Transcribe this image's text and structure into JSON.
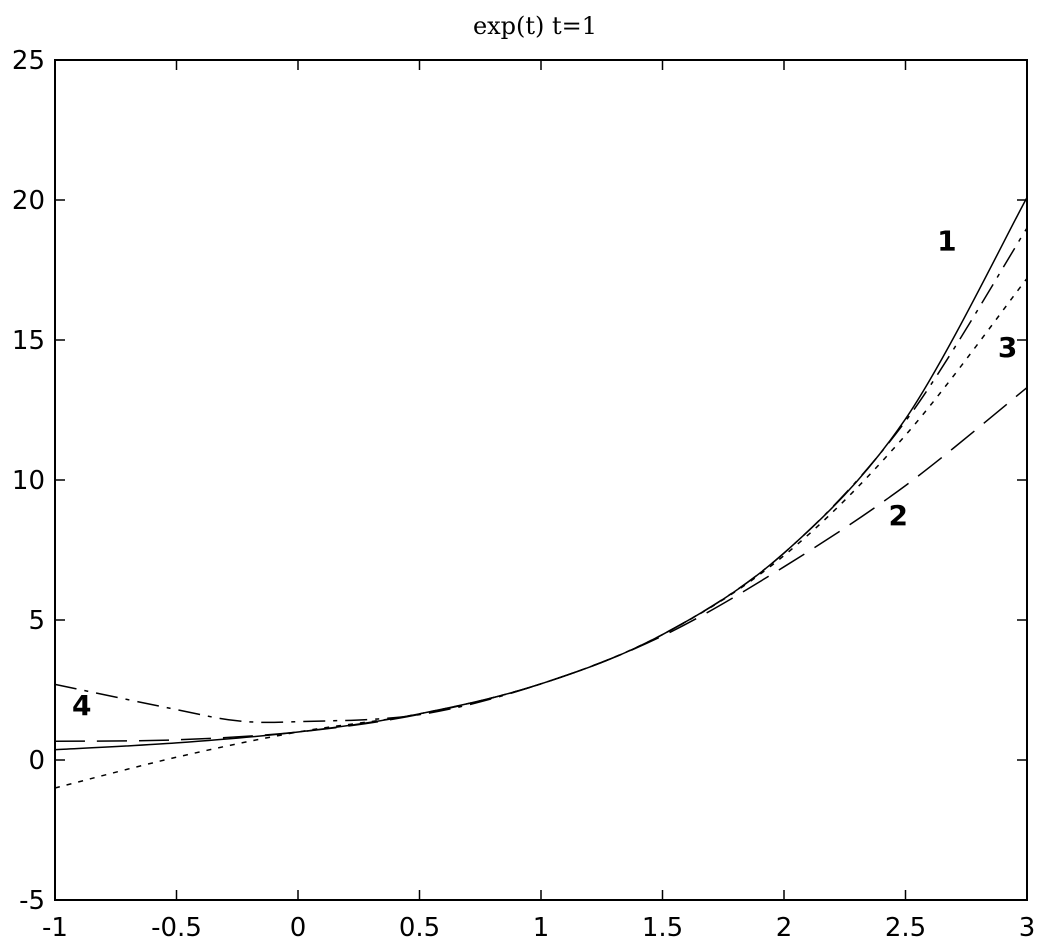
{
  "chart_data": {
    "type": "line",
    "title": "exp(t)  t=1",
    "xlabel": "",
    "ylabel": "",
    "xlim": [
      -1,
      3
    ],
    "ylim": [
      -5,
      25
    ],
    "xticks": [
      -1,
      -0.5,
      0,
      0.5,
      1,
      1.5,
      2,
      2.5,
      3
    ],
    "xtick_labels": [
      "-1",
      "-0.5",
      "0",
      "0.5",
      "1",
      "1.5",
      "2",
      "2.5",
      "3"
    ],
    "yticks": [
      -5,
      0,
      5,
      10,
      15,
      20,
      25
    ],
    "ytick_labels": [
      "-5",
      "0",
      "5",
      "10",
      "15",
      "20",
      "25"
    ],
    "grid": false,
    "series": [
      {
        "label_text": "1",
        "style": "solid",
        "label_pos": [
          2.63,
          18.2
        ],
        "points": [
          [
            -1,
            0.37
          ],
          [
            -0.5,
            0.61
          ],
          [
            0,
            1.0
          ],
          [
            0.5,
            1.65
          ],
          [
            1,
            2.72
          ],
          [
            1.5,
            4.48
          ],
          [
            2,
            7.39
          ],
          [
            2.5,
            12.18
          ],
          [
            3,
            20.09
          ]
        ]
      },
      {
        "label_text": "2",
        "style": "long-dash",
        "label_pos": [
          2.43,
          8.4
        ],
        "points": [
          [
            -1,
            0.67
          ],
          [
            -0.5,
            0.72
          ],
          [
            0,
            1.0
          ],
          [
            0.5,
            1.63
          ],
          [
            1,
            2.72
          ],
          [
            1.5,
            4.43
          ],
          [
            2,
            6.9
          ],
          [
            2.5,
            9.8
          ],
          [
            3,
            13.3
          ]
        ]
      },
      {
        "label_text": "3",
        "style": "dotted",
        "label_pos": [
          2.88,
          14.4
        ],
        "points": [
          [
            -1,
            -1.0
          ],
          [
            -0.5,
            0.1
          ],
          [
            0,
            1.0
          ],
          [
            0.5,
            1.65
          ],
          [
            1,
            2.72
          ],
          [
            1.5,
            4.48
          ],
          [
            2,
            7.3
          ],
          [
            2.5,
            11.6
          ],
          [
            3,
            17.2
          ]
        ]
      },
      {
        "label_text": "4",
        "style": "dash-dot",
        "label_pos": [
          -0.93,
          1.6
        ],
        "points": [
          [
            -1,
            2.7
          ],
          [
            -0.5,
            1.8
          ],
          [
            -0.25,
            1.4
          ],
          [
            0,
            1.37
          ],
          [
            0.5,
            1.62
          ],
          [
            1,
            2.72
          ],
          [
            1.5,
            4.48
          ],
          [
            2,
            7.39
          ],
          [
            2.5,
            12.1
          ],
          [
            3,
            19.0
          ]
        ]
      }
    ]
  }
}
